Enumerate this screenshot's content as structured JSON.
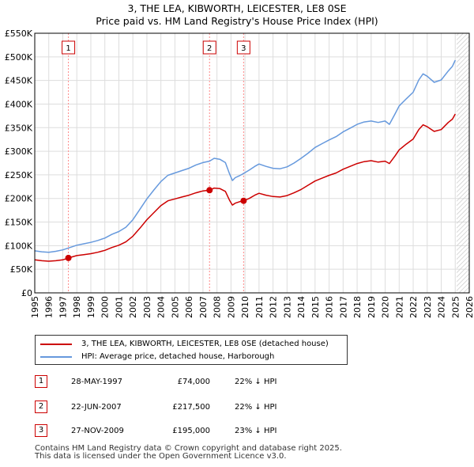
{
  "title_line1": "3, THE LEA, KIBWORTH, LEICESTER, LE8 0SE",
  "title_line2": "Price paid vs. HM Land Registry's House Price Index (HPI)",
  "colors": {
    "property": "#cc0000",
    "hpi": "#6699dd",
    "future_hatch": "#cccccc",
    "marker_line": "#ff8888",
    "grid": "#dddddd"
  },
  "legend": {
    "property_label": "3, THE LEA, KIBWORTH, LEICESTER, LE8 0SE (detached house)",
    "hpi_label": "HPI: Average price, detached house, Harborough"
  },
  "sales": [
    {
      "num": "1",
      "date": "28-MAY-1997",
      "price": "£74,000",
      "hpi_diff": "22% ↓ HPI"
    },
    {
      "num": "2",
      "date": "22-JUN-2007",
      "price": "£217,500",
      "hpi_diff": "22% ↓ HPI"
    },
    {
      "num": "3",
      "date": "27-NOV-2009",
      "price": "£195,000",
      "hpi_diff": "23% ↓ HPI"
    }
  ],
  "footer_line1": "Contains HM Land Registry data © Crown copyright and database right 2025.",
  "footer_line2": "This data is licensed under the Open Government Licence v3.0.",
  "chart_data": {
    "type": "line",
    "xlim": [
      1995,
      2026
    ],
    "ylim": [
      0,
      550000
    ],
    "x_ticks": [
      1995,
      1996,
      1997,
      1998,
      1999,
      2000,
      2001,
      2002,
      2003,
      2004,
      2005,
      2006,
      2007,
      2008,
      2009,
      2010,
      2011,
      2012,
      2013,
      2014,
      2015,
      2016,
      2017,
      2018,
      2019,
      2020,
      2021,
      2022,
      2023,
      2024,
      2025,
      2026
    ],
    "x_tick_labels": [
      "1995",
      "1996",
      "1997",
      "1998",
      "1999",
      "2000",
      "2001",
      "2002",
      "2003",
      "2004",
      "2005",
      "2006",
      "2007",
      "2008",
      "2009",
      "2010",
      "2011",
      "2012",
      "2013",
      "2014",
      "2015",
      "2016",
      "2017",
      "2018",
      "2019",
      "2020",
      "2021",
      "2022",
      "2023",
      "2024",
      "2025",
      "2026"
    ],
    "y_ticks": [
      0,
      50000,
      100000,
      150000,
      200000,
      250000,
      300000,
      350000,
      400000,
      450000,
      500000,
      550000
    ],
    "y_tick_labels": [
      "£0",
      "£50K",
      "£100K",
      "£150K",
      "£200K",
      "£250K",
      "£300K",
      "£350K",
      "£400K",
      "£450K",
      "£500K",
      "£550K"
    ],
    "future_start": 2025.1,
    "series": [
      {
        "name": "3, THE LEA, KIBWORTH, LEICESTER, LE8 0SE (detached house)",
        "x": [
          1995.0,
          1995.5,
          1996.0,
          1996.5,
          1997.0,
          1997.4,
          1998.0,
          1998.5,
          1999.0,
          1999.5,
          2000.0,
          2000.5,
          2001.0,
          2001.5,
          2002.0,
          2002.5,
          2003.0,
          2003.5,
          2004.0,
          2004.5,
          2005.0,
          2005.5,
          2006.0,
          2006.5,
          2007.0,
          2007.47,
          2007.8,
          2008.2,
          2008.6,
          2008.9,
          2009.1,
          2009.3,
          2009.6,
          2009.9,
          2010.3,
          2010.7,
          2011.0,
          2011.5,
          2012.0,
          2012.5,
          2013.0,
          2013.5,
          2014.0,
          2014.5,
          2015.0,
          2015.5,
          2016.0,
          2016.5,
          2017.0,
          2017.5,
          2018.0,
          2018.5,
          2019.0,
          2019.5,
          2020.0,
          2020.3,
          2020.7,
          2021.0,
          2021.5,
          2022.0,
          2022.4,
          2022.7,
          2023.0,
          2023.5,
          2024.0,
          2024.5,
          2024.8,
          2025.0
        ],
        "values": [
          70000,
          68000,
          67000,
          68000,
          70000,
          74000,
          79000,
          81000,
          83000,
          86000,
          90000,
          96000,
          101000,
          108000,
          120000,
          137000,
          155000,
          170000,
          185000,
          195000,
          199000,
          203000,
          207000,
          212000,
          216000,
          217500,
          222000,
          221000,
          215000,
          196000,
          186000,
          190000,
          193000,
          195000,
          200000,
          207000,
          211000,
          207000,
          204000,
          203000,
          206000,
          212000,
          219000,
          228000,
          237000,
          243000,
          249000,
          254000,
          262000,
          268000,
          274000,
          278000,
          280000,
          277000,
          279000,
          274000,
          290000,
          303000,
          315000,
          326000,
          346000,
          356000,
          352000,
          342000,
          346000,
          361000,
          368000,
          379000
        ]
      },
      {
        "name": "HPI: Average price, detached house, Harborough",
        "x": [
          1995.0,
          1995.5,
          1996.0,
          1996.5,
          1997.0,
          1997.4,
          1998.0,
          1998.5,
          1999.0,
          1999.5,
          2000.0,
          2000.5,
          2001.0,
          2001.5,
          2002.0,
          2002.5,
          2003.0,
          2003.5,
          2004.0,
          2004.5,
          2005.0,
          2005.5,
          2006.0,
          2006.5,
          2007.0,
          2007.47,
          2007.8,
          2008.2,
          2008.6,
          2008.9,
          2009.1,
          2009.3,
          2009.6,
          2009.9,
          2010.3,
          2010.7,
          2011.0,
          2011.5,
          2012.0,
          2012.5,
          2013.0,
          2013.5,
          2014.0,
          2014.5,
          2015.0,
          2015.5,
          2016.0,
          2016.5,
          2017.0,
          2017.5,
          2018.0,
          2018.5,
          2019.0,
          2019.5,
          2020.0,
          2020.3,
          2020.7,
          2021.0,
          2021.5,
          2022.0,
          2022.4,
          2022.7,
          2023.0,
          2023.5,
          2024.0,
          2024.5,
          2024.8,
          2025.0
        ],
        "values": [
          89000,
          87000,
          86000,
          88000,
          91000,
          95000,
          101000,
          104000,
          107000,
          111000,
          116000,
          124000,
          130000,
          139000,
          155000,
          177000,
          199000,
          218000,
          236000,
          249000,
          254000,
          259000,
          264000,
          271000,
          276000,
          279000,
          285000,
          283000,
          276000,
          252000,
          238000,
          244000,
          248000,
          253000,
          260000,
          268000,
          273000,
          268000,
          264000,
          263000,
          267000,
          275000,
          285000,
          296000,
          308000,
          316000,
          324000,
          331000,
          341000,
          349000,
          357000,
          362000,
          364000,
          361000,
          364000,
          357000,
          379000,
          396000,
          411000,
          425000,
          451000,
          464000,
          459000,
          446000,
          451000,
          470000,
          480000,
          493000
        ]
      }
    ],
    "sale_markers": [
      {
        "num": "1",
        "x": 1997.4,
        "value": 74000
      },
      {
        "num": "2",
        "x": 2007.47,
        "value": 217500
      },
      {
        "num": "3",
        "x": 2009.9,
        "value": 195000
      }
    ]
  }
}
